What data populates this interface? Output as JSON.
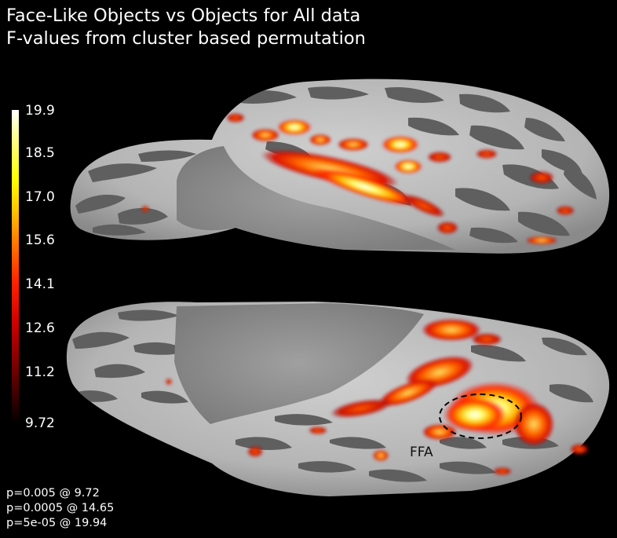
{
  "title": {
    "line1": "Face-Like Objects vs Objects for All data",
    "line2": "F-values from cluster based permutation"
  },
  "colorbar": {
    "ticks": [
      "19.9",
      "18.5",
      "17.0",
      "15.6",
      "14.1",
      "12.6",
      "11.2",
      "9.72"
    ]
  },
  "annotation": {
    "label": "FFA"
  },
  "pvalues": [
    "p=0.005 @ 9.72",
    "p=0.0005 @ 14.65",
    "p=5e-05 @ 19.94"
  ]
}
